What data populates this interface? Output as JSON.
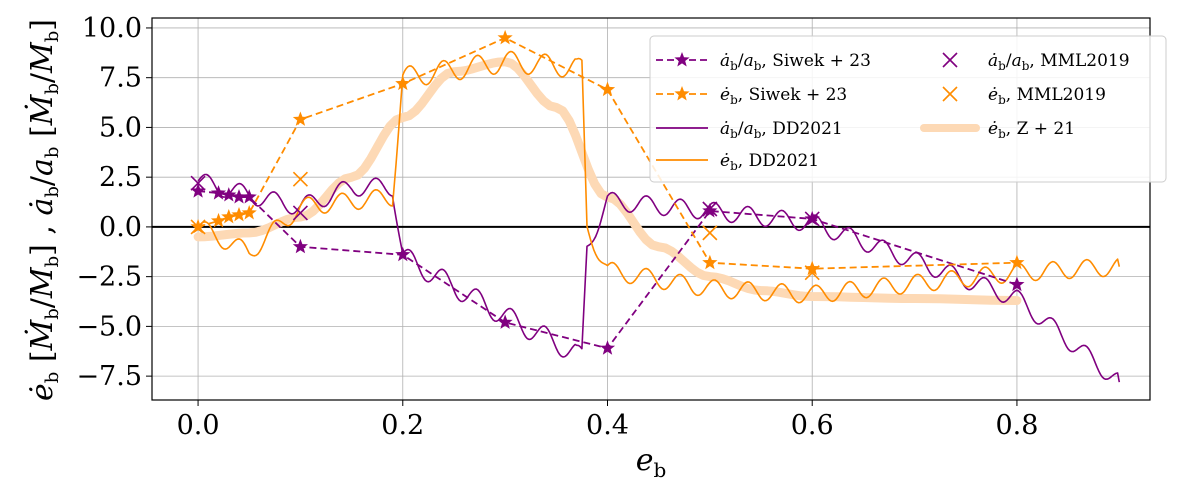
{
  "chart_data": {
    "type": "line",
    "title": "",
    "xlabel": "e_b",
    "ylabel": "ė_b [Ṁ_b/M_b] , ȧ_b/a_b [Ṁ_b/M_b]",
    "xlim": [
      -0.045,
      0.93
    ],
    "ylim": [
      -8.7,
      10.5
    ],
    "grid": true,
    "zero_line": true,
    "xticks": [
      0.0,
      0.2,
      0.4,
      0.6,
      0.8
    ],
    "xtick_labels": [
      "0.0",
      "0.2",
      "0.4",
      "0.6",
      "0.8"
    ],
    "yticks": [
      -7.5,
      -5.0,
      -2.5,
      0.0,
      2.5,
      5.0,
      7.5,
      10.0
    ],
    "ytick_labels": [
      "−7.5",
      "−5.0",
      "−2.5",
      "0.0",
      "2.5",
      "5.0",
      "7.5",
      "10.0"
    ],
    "legend_position": "top-right",
    "series": [
      {
        "name": "ȧ_b/a_b, Siwek+23",
        "label_main": "ȧb/ab,",
        "label_ref": "Siwek + 23",
        "color": "#800080",
        "style": "dashed",
        "marker": "star",
        "x": [
          0.0,
          0.02,
          0.03,
          0.04,
          0.05,
          0.1,
          0.2,
          0.3,
          0.4,
          0.5,
          0.6,
          0.8
        ],
        "y": [
          1.8,
          1.7,
          1.6,
          1.5,
          1.5,
          -1.0,
          -1.4,
          -4.8,
          -6.1,
          0.8,
          0.4,
          -2.9
        ]
      },
      {
        "name": "ė_b, Siwek+23",
        "label_main": "ėb,",
        "label_ref": "Siwek + 23",
        "color": "#ff8c00",
        "style": "dashed",
        "marker": "star",
        "x": [
          0.0,
          0.02,
          0.03,
          0.04,
          0.05,
          0.1,
          0.2,
          0.3,
          0.4,
          0.5,
          0.6,
          0.8
        ],
        "y": [
          0.0,
          0.3,
          0.5,
          0.6,
          0.7,
          5.4,
          7.2,
          9.5,
          6.9,
          -1.8,
          -2.1,
          -1.8
        ]
      },
      {
        "name": "ȧ_b/a_b, DD2021",
        "label_main": "ȧb/ab,",
        "label_ref": "DD2021",
        "color": "#800080",
        "style": "solid",
        "marker": "none",
        "x": [
          0.0,
          0.05,
          0.1,
          0.15,
          0.19,
          0.2,
          0.3,
          0.375,
          0.38,
          0.4,
          0.5,
          0.6,
          0.8,
          0.9
        ],
        "y": [
          2.3,
          1.6,
          1.0,
          2.0,
          2.0,
          -1.5,
          -4.5,
          -6.5,
          -1.0,
          1.3,
          0.8,
          0.2,
          -3.6,
          -7.8
        ]
      },
      {
        "name": "ė_b, DD2021",
        "label_main": "ėb,",
        "label_ref": "DD2021",
        "color": "#ff8c00",
        "style": "solid",
        "marker": "none",
        "x": [
          0.0,
          0.05,
          0.1,
          0.15,
          0.19,
          0.2,
          0.3,
          0.375,
          0.38,
          0.4,
          0.5,
          0.6,
          0.8,
          0.9
        ],
        "y": [
          0.0,
          -1.3,
          1.0,
          1.3,
          1.5,
          7.5,
          8.3,
          8.0,
          0.0,
          -2.2,
          -3.1,
          -3.4,
          -2.3,
          -2.0
        ]
      },
      {
        "name": "ȧ_b/a_b, MML2019",
        "label_main": "ȧb/ab,",
        "label_ref": "MML2019",
        "color": "#800080",
        "style": "none",
        "marker": "x",
        "x": [
          0.0,
          0.1,
          0.5,
          0.6
        ],
        "y": [
          2.2,
          0.7,
          0.9,
          0.4
        ]
      },
      {
        "name": "ė_b, MML2019",
        "label_main": "ėb,",
        "label_ref": "MML2019",
        "color": "#ff8c00",
        "style": "none",
        "marker": "x",
        "x": [
          0.0,
          0.1,
          0.5,
          0.6
        ],
        "y": [
          0.0,
          2.4,
          -0.3,
          -2.3
        ]
      },
      {
        "name": "ė_b, Z+21",
        "label_main": "ėb,",
        "label_ref": "Z + 21",
        "color": "#fdd9b5",
        "style": "thick",
        "marker": "none",
        "x": [
          0.0,
          0.05,
          0.1,
          0.15,
          0.2,
          0.25,
          0.3,
          0.35,
          0.4,
          0.45,
          0.5,
          0.55,
          0.6,
          0.7,
          0.8
        ],
        "y": [
          -0.5,
          -0.3,
          0.5,
          2.5,
          5.5,
          7.8,
          8.3,
          6.0,
          1.5,
          -1.0,
          -2.5,
          -3.2,
          -3.5,
          -3.6,
          -3.7
        ]
      }
    ]
  }
}
